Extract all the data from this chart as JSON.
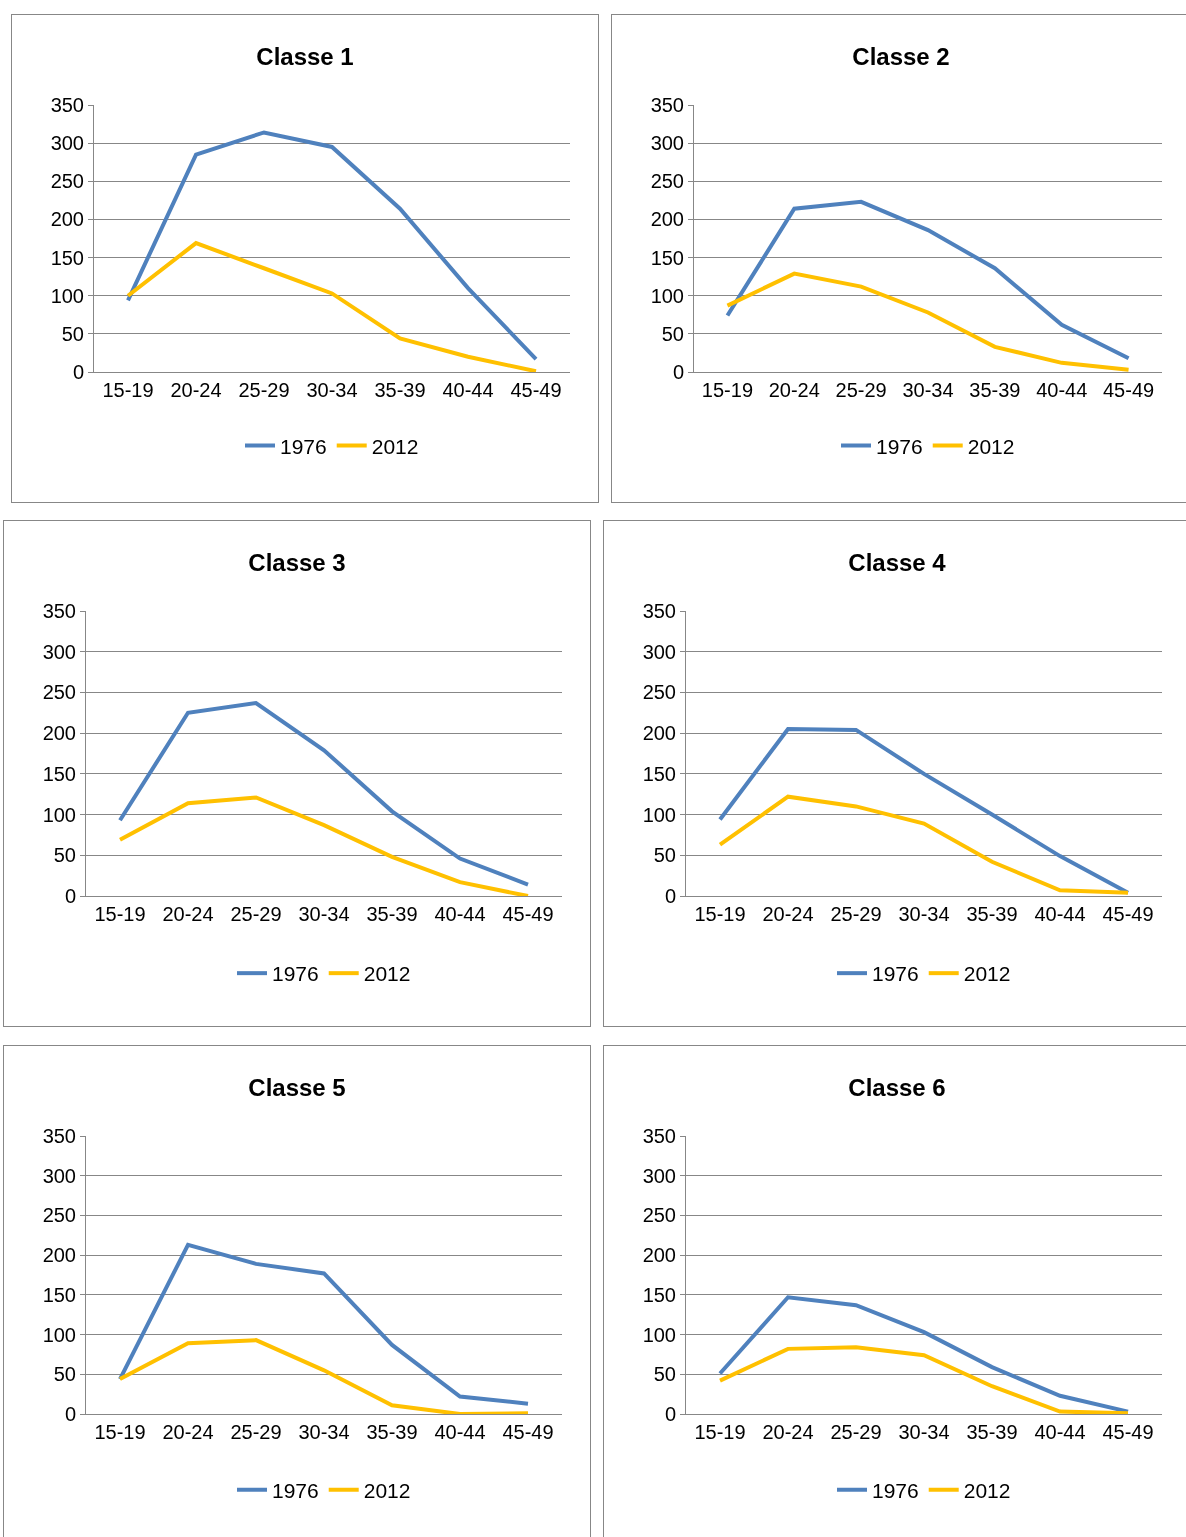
{
  "chart_data": [
    {
      "type": "line",
      "title": "Classe 1",
      "categories": [
        "15-19",
        "20-24",
        "25-29",
        "30-34",
        "35-39",
        "40-44",
        "45-49"
      ],
      "ylim": [
        0,
        350
      ],
      "yticks": [
        0,
        50,
        100,
        150,
        200,
        250,
        300,
        350
      ],
      "grid": "y",
      "legend": "bottom",
      "series": [
        {
          "name": "1976",
          "color": "#4f81bd",
          "values": [
            94,
            285,
            314,
            295,
            214,
            110,
            17
          ]
        },
        {
          "name": "2012",
          "color": "#ffc000",
          "values": [
            100,
            169,
            136,
            103,
            44,
            20,
            1
          ]
        }
      ]
    },
    {
      "type": "line",
      "title": "Classe 2",
      "categories": [
        "15-19",
        "20-24",
        "25-29",
        "30-34",
        "35-39",
        "40-44",
        "45-49"
      ],
      "ylim": [
        0,
        350
      ],
      "yticks": [
        0,
        50,
        100,
        150,
        200,
        250,
        300,
        350
      ],
      "grid": "y",
      "legend": "bottom",
      "series": [
        {
          "name": "1976",
          "color": "#4f81bd",
          "values": [
            74,
            214,
            223,
            186,
            136,
            62,
            18
          ]
        },
        {
          "name": "2012",
          "color": "#ffc000",
          "values": [
            87,
            129,
            112,
            78,
            33,
            12,
            3
          ]
        }
      ]
    },
    {
      "type": "line",
      "title": "Classe 3",
      "categories": [
        "15-19",
        "20-24",
        "25-29",
        "30-34",
        "35-39",
        "40-44",
        "45-49"
      ],
      "ylim": [
        0,
        350
      ],
      "yticks": [
        0,
        50,
        100,
        150,
        200,
        250,
        300,
        350
      ],
      "grid": "y",
      "legend": "bottom",
      "series": [
        {
          "name": "1976",
          "color": "#4f81bd",
          "values": [
            93,
            225,
            237,
            179,
            104,
            46,
            14
          ]
        },
        {
          "name": "2012",
          "color": "#ffc000",
          "values": [
            69,
            114,
            121,
            87,
            48,
            17,
            0
          ]
        }
      ]
    },
    {
      "type": "line",
      "title": "Classe 4",
      "categories": [
        "15-19",
        "20-24",
        "25-29",
        "30-34",
        "35-39",
        "40-44",
        "45-49"
      ],
      "ylim": [
        0,
        350
      ],
      "yticks": [
        0,
        50,
        100,
        150,
        200,
        250,
        300,
        350
      ],
      "grid": "y",
      "legend": "bottom",
      "series": [
        {
          "name": "1976",
          "color": "#4f81bd",
          "values": [
            94,
            205,
            204,
            150,
            100,
            49,
            4
          ]
        },
        {
          "name": "2012",
          "color": "#ffc000",
          "values": [
            63,
            122,
            110,
            89,
            42,
            7,
            4
          ]
        }
      ]
    },
    {
      "type": "line",
      "title": "Classe 5",
      "categories": [
        "15-19",
        "20-24",
        "25-29",
        "30-34",
        "35-39",
        "40-44",
        "45-49"
      ],
      "ylim": [
        0,
        350
      ],
      "yticks": [
        0,
        50,
        100,
        150,
        200,
        250,
        300,
        350
      ],
      "grid": "y",
      "legend": "bottom",
      "series": [
        {
          "name": "1976",
          "color": "#4f81bd",
          "values": [
            44,
            213,
            189,
            177,
            87,
            22,
            13
          ]
        },
        {
          "name": "2012",
          "color": "#ffc000",
          "values": [
            44,
            89,
            93,
            55,
            11,
            0,
            1
          ]
        }
      ]
    },
    {
      "type": "line",
      "title": "Classe 6",
      "categories": [
        "15-19",
        "20-24",
        "25-29",
        "30-34",
        "35-39",
        "40-44",
        "45-49"
      ],
      "ylim": [
        0,
        350
      ],
      "yticks": [
        0,
        50,
        100,
        150,
        200,
        250,
        300,
        350
      ],
      "grid": "y",
      "legend": "bottom",
      "series": [
        {
          "name": "1976",
          "color": "#4f81bd",
          "values": [
            51,
            147,
            137,
            103,
            59,
            23,
            3
          ]
        },
        {
          "name": "2012",
          "color": "#ffc000",
          "values": [
            42,
            82,
            84,
            74,
            35,
            3,
            1
          ]
        }
      ]
    }
  ]
}
